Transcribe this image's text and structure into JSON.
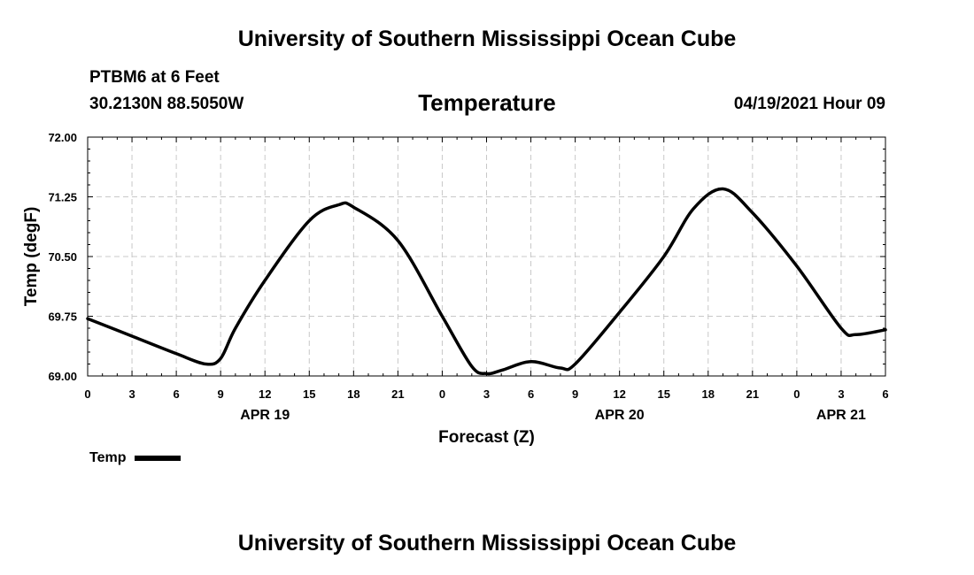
{
  "header": {
    "title": "University of Southern Mississippi Ocean Cube",
    "station": "PTBM6 at 6 Feet",
    "coords": "30.2130N  88.5050W",
    "plot_title": "Temperature",
    "timestamp": "04/19/2021 Hour 09"
  },
  "footer": {
    "title": "University of Southern Mississippi Ocean Cube"
  },
  "legend": {
    "label": "Temp"
  },
  "chart_data": {
    "type": "line",
    "title": "Temperature",
    "xlabel": "Forecast (Z)",
    "ylabel": "Temp (degF)",
    "ylim": [
      69.0,
      72.0
    ],
    "y_ticks": [
      "69.00",
      "69.75",
      "70.50",
      "71.25",
      "72.00"
    ],
    "y_tick_values": [
      69.0,
      69.75,
      70.5,
      71.25,
      72.0
    ],
    "x_range_hours": [
      0,
      54
    ],
    "x_ticks": [
      "0",
      "3",
      "6",
      "9",
      "12",
      "15",
      "18",
      "21",
      "0",
      "3",
      "6",
      "9",
      "12",
      "15",
      "18",
      "21",
      "0",
      "3",
      "6"
    ],
    "x_tick_hours": [
      0,
      3,
      6,
      9,
      12,
      15,
      18,
      21,
      24,
      27,
      30,
      33,
      36,
      39,
      42,
      45,
      48,
      51,
      54
    ],
    "date_labels": [
      {
        "label": "APR 19",
        "hour": 12
      },
      {
        "label": "APR 20",
        "hour": 36
      },
      {
        "label": "APR 21",
        "hour": 51
      }
    ],
    "grid": true,
    "legend_position": "bottom-left",
    "series": [
      {
        "name": "Temp",
        "color": "#000000",
        "x": [
          0,
          3,
          6,
          8,
          9,
          10,
          12,
          15,
          17,
          18,
          21,
          24,
          26,
          27,
          28,
          30,
          32,
          33,
          36,
          39,
          41,
          43,
          45,
          48,
          51,
          52,
          54
        ],
        "y": [
          69.72,
          69.5,
          69.28,
          69.15,
          69.22,
          69.6,
          70.2,
          70.95,
          71.15,
          71.12,
          70.7,
          69.75,
          69.12,
          69.03,
          69.07,
          69.18,
          69.1,
          69.15,
          69.8,
          70.5,
          71.1,
          71.35,
          71.05,
          70.38,
          69.6,
          69.52,
          69.58
        ]
      }
    ]
  }
}
